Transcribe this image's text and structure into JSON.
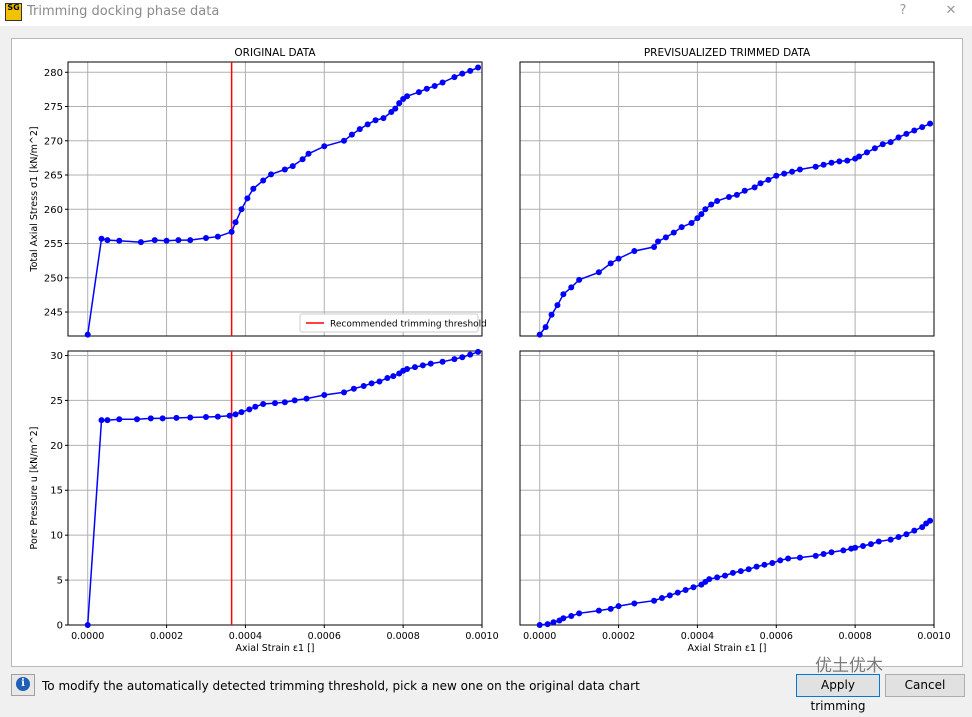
{
  "window": {
    "title": "Trimming docking phase data",
    "icon_text": "SG",
    "help_glyph": "?",
    "close_glyph": "✕"
  },
  "footer": {
    "message": "To modify the automatically detected trimming threshold, pick a new one on the original data chart",
    "apply_label": "Apply trimming",
    "cancel_label": "Cancel",
    "watermark": "优土优木"
  },
  "colors": {
    "series": "#0000ff",
    "threshold": "#ff0000",
    "grid": "#b0b0b0"
  },
  "chart_data": [
    {
      "type": "line",
      "title": "ORIGINAL DATA",
      "ylabel": "Total Axial Stress  σ1 [kN/m^2]",
      "xlabel": "",
      "xlim": [
        -5e-05,
        0.001
      ],
      "ylim": [
        241.5,
        281.5
      ],
      "yticks": [
        245,
        250,
        255,
        260,
        265,
        270,
        275,
        280
      ],
      "xticks": [
        0,
        0.0002,
        0.0004,
        0.0006,
        0.0008,
        0.001
      ],
      "threshold_x": 0.000365,
      "legend": "Recommended trimming threshold",
      "legend_position": "lower-right",
      "grid": true,
      "x": [
        0.0,
        3.5e-05,
        5e-05,
        8e-05,
        0.000135,
        0.00017,
        0.0002,
        0.00023,
        0.00026,
        0.0003,
        0.00033,
        0.000365,
        0.000375,
        0.00039,
        0.000405,
        0.00042,
        0.000445,
        0.000465,
        0.0005,
        0.00052,
        0.000545,
        0.00056,
        0.0006,
        0.00065,
        0.00067,
        0.00069,
        0.00071,
        0.00073,
        0.00075,
        0.00077,
        0.00078,
        0.00079,
        0.0008,
        0.00081,
        0.00084,
        0.00086,
        0.00088,
        0.0009,
        0.00093,
        0.00095,
        0.00097,
        0.00099
      ],
      "values": [
        241.7,
        255.7,
        255.5,
        255.4,
        255.2,
        255.5,
        255.4,
        255.5,
        255.5,
        255.8,
        256.0,
        256.7,
        258.1,
        260.0,
        261.6,
        263.0,
        264.2,
        265.1,
        265.8,
        266.3,
        267.3,
        268.1,
        269.2,
        270.0,
        270.9,
        271.7,
        272.4,
        273.0,
        273.3,
        274.2,
        274.7,
        275.5,
        276.1,
        276.5,
        277.1,
        277.6,
        278.0,
        278.5,
        279.3,
        279.8,
        280.2,
        280.7
      ]
    },
    {
      "type": "line",
      "title": "PREVISUALIZED TRIMMED DATA",
      "ylabel": "",
      "xlabel": "",
      "xlim": [
        -5e-05,
        0.001
      ],
      "ylim": [
        241.5,
        281.5
      ],
      "grid": true,
      "x": [
        0.0,
        1.5e-05,
        3e-05,
        4.5e-05,
        6e-05,
        8e-05,
        0.0001,
        0.00015,
        0.00018,
        0.0002,
        0.00024,
        0.00029,
        0.0003,
        0.00032,
        0.00034,
        0.00036,
        0.000385,
        0.0004,
        0.00041,
        0.00042,
        0.000435,
        0.00045,
        0.00048,
        0.0005,
        0.00052,
        0.000545,
        0.00056,
        0.00058,
        0.0006,
        0.00062,
        0.00064,
        0.00066,
        0.0007,
        0.00072,
        0.00074,
        0.00076,
        0.00078,
        0.0008,
        0.00081,
        0.00083,
        0.00085,
        0.00087,
        0.00089,
        0.00091,
        0.00093,
        0.00095,
        0.00097,
        0.00099
      ],
      "values": [
        241.7,
        242.8,
        244.6,
        246.0,
        247.6,
        248.6,
        249.7,
        250.8,
        252.1,
        252.8,
        253.9,
        254.5,
        255.3,
        255.9,
        256.6,
        257.4,
        258.0,
        258.7,
        259.3,
        260.0,
        260.7,
        261.2,
        261.8,
        262.1,
        262.7,
        263.2,
        263.8,
        264.3,
        264.9,
        265.2,
        265.5,
        265.8,
        266.2,
        266.5,
        266.8,
        267.0,
        267.1,
        267.4,
        267.7,
        268.3,
        268.9,
        269.5,
        269.8,
        270.5,
        271.0,
        271.5,
        272.0,
        272.5
      ]
    },
    {
      "type": "line",
      "title": "",
      "ylabel": "Pore Pressure  u [kN/m^2]",
      "xlabel": "Axial Strain  ε1 []",
      "xlim": [
        -5e-05,
        0.001
      ],
      "ylim": [
        0,
        30.5
      ],
      "yticks": [
        0,
        5,
        10,
        15,
        20,
        25,
        30
      ],
      "xticks": [
        0,
        0.0002,
        0.0004,
        0.0006,
        0.0008,
        0.001
      ],
      "xticklabels": [
        "0.0000",
        "0.0002",
        "0.0004",
        "0.0006",
        "0.0008",
        "0.0010"
      ],
      "threshold_x": 0.000365,
      "grid": true,
      "x": [
        0.0,
        3.5e-05,
        5e-05,
        8e-05,
        0.000125,
        0.00016,
        0.00019,
        0.000225,
        0.00026,
        0.0003,
        0.00033,
        0.00036,
        0.000375,
        0.00039,
        0.00041,
        0.000425,
        0.000445,
        0.000475,
        0.0005,
        0.000525,
        0.000555,
        0.0006,
        0.00065,
        0.000675,
        0.0007,
        0.00072,
        0.00074,
        0.00076,
        0.000775,
        0.00079,
        0.0008,
        0.00081,
        0.00083,
        0.00085,
        0.00087,
        0.0009,
        0.00093,
        0.00095,
        0.00097,
        0.00099
      ],
      "values": [
        0.0,
        22.8,
        22.8,
        22.9,
        22.9,
        23.0,
        23.0,
        23.05,
        23.1,
        23.15,
        23.2,
        23.3,
        23.45,
        23.7,
        24.0,
        24.3,
        24.6,
        24.7,
        24.8,
        25.0,
        25.2,
        25.6,
        25.9,
        26.3,
        26.6,
        26.9,
        27.1,
        27.5,
        27.7,
        28.0,
        28.3,
        28.5,
        28.7,
        28.9,
        29.1,
        29.3,
        29.6,
        29.8,
        30.1,
        30.4
      ]
    },
    {
      "type": "line",
      "title": "",
      "ylabel": "",
      "xlabel": "Axial Strain  ε1 []",
      "xlim": [
        -5e-05,
        0.001
      ],
      "ylim": [
        0,
        30.5
      ],
      "xticks": [
        0,
        0.0002,
        0.0004,
        0.0006,
        0.0008,
        0.001
      ],
      "xticklabels": [
        "0.0000",
        "0.0002",
        "0.0004",
        "0.0006",
        "0.0008",
        "0.0010"
      ],
      "grid": true,
      "x": [
        0.0,
        2e-05,
        3.5e-05,
        5e-05,
        6e-05,
        8e-05,
        0.0001,
        0.00015,
        0.00018,
        0.0002,
        0.00024,
        0.00029,
        0.00031,
        0.00033,
        0.00035,
        0.00037,
        0.00039,
        0.00041,
        0.00042,
        0.00043,
        0.00045,
        0.00047,
        0.00049,
        0.00051,
        0.00053,
        0.00055,
        0.00057,
        0.00059,
        0.00061,
        0.00063,
        0.00066,
        0.0007,
        0.00072,
        0.00074,
        0.00077,
        0.00079,
        0.0008,
        0.00082,
        0.00084,
        0.00086,
        0.00089,
        0.00091,
        0.00093,
        0.00095,
        0.00097,
        0.00098,
        0.00099
      ],
      "values": [
        0.0,
        0.1,
        0.3,
        0.5,
        0.75,
        1.0,
        1.3,
        1.6,
        1.8,
        2.1,
        2.4,
        2.7,
        3.0,
        3.3,
        3.6,
        3.9,
        4.2,
        4.5,
        4.8,
        5.1,
        5.3,
        5.5,
        5.8,
        6.0,
        6.2,
        6.5,
        6.7,
        6.9,
        7.2,
        7.4,
        7.5,
        7.7,
        7.9,
        8.1,
        8.3,
        8.5,
        8.6,
        8.8,
        9.0,
        9.3,
        9.5,
        9.8,
        10.1,
        10.5,
        10.9,
        11.3,
        11.6
      ]
    }
  ]
}
